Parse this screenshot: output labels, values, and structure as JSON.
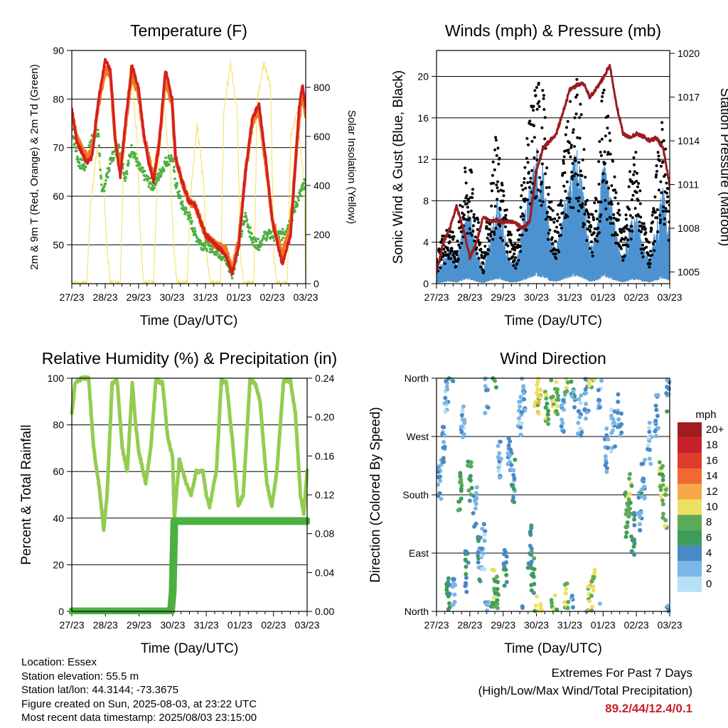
{
  "chart_data": [
    {
      "id": "temperature",
      "type": "line",
      "title": "Temperature (F)",
      "xlabel": "Time (Day/UTC)",
      "ylabel": "2m & 9m T (Red, Orange) & 2m Td (Green)",
      "ylabel_right": "Solar Insolation (Yellow)",
      "x_ticks": [
        "27/23",
        "28/23",
        "29/23",
        "30/23",
        "31/23",
        "01/23",
        "02/23",
        "03/23"
      ],
      "xlim": [
        0,
        7
      ],
      "ylim": [
        42,
        90
      ],
      "y_ticks": [
        50,
        60,
        70,
        80,
        90
      ],
      "ylim_right": [
        0,
        950
      ],
      "y_ticks_right": [
        0,
        200,
        400,
        600,
        800
      ],
      "grid": "horizontal",
      "colors": {
        "t2m": "#d42020",
        "t9m": "#f07a20",
        "td2m": "#4cb040",
        "solar": "#f5e05a"
      },
      "series": [
        {
          "key": "t2m",
          "x": [
            0,
            0.15,
            0.3,
            0.45,
            0.6,
            0.8,
            1.0,
            1.15,
            1.3,
            1.45,
            1.6,
            1.8,
            2.0,
            2.15,
            2.3,
            2.45,
            2.6,
            2.8,
            3.0,
            3.1,
            3.3,
            3.5,
            3.7,
            3.9,
            4.0,
            4.3,
            4.6,
            4.8,
            5.0,
            5.2,
            5.4,
            5.6,
            5.8,
            6.0,
            6.3,
            6.55,
            6.8,
            6.9,
            7.0
          ],
          "y": [
            78,
            71,
            69,
            67,
            68,
            80,
            88,
            86,
            72,
            64,
            75,
            87,
            82,
            73,
            67,
            63,
            70,
            86,
            80,
            68,
            63,
            59,
            58,
            54,
            52,
            50,
            48,
            44,
            50,
            65,
            76,
            79,
            68,
            55,
            46,
            52,
            78,
            83,
            78
          ]
        },
        {
          "key": "t9m",
          "x": [
            0,
            0.15,
            0.3,
            0.45,
            0.6,
            0.8,
            1.0,
            1.15,
            1.3,
            1.45,
            1.6,
            1.8,
            2.0,
            2.15,
            2.3,
            2.45,
            2.6,
            2.8,
            3.0,
            3.1,
            3.3,
            3.5,
            3.7,
            3.9,
            4.0,
            4.3,
            4.6,
            4.8,
            5.0,
            5.2,
            5.4,
            5.6,
            5.8,
            6.0,
            6.3,
            6.55,
            6.8,
            6.9,
            7.0
          ],
          "y": [
            77,
            72,
            70,
            68,
            69,
            79,
            86,
            85,
            72,
            65,
            74,
            85,
            81,
            73,
            68,
            64,
            70,
            84,
            79,
            68,
            63,
            59,
            58,
            54,
            52,
            50,
            49,
            45,
            51,
            65,
            75,
            78,
            67,
            55,
            48,
            54,
            76,
            81,
            77
          ]
        },
        {
          "key": "td2m",
          "x": [
            0,
            0.2,
            0.4,
            0.6,
            0.8,
            0.9,
            1.0,
            1.2,
            1.4,
            1.6,
            1.8,
            2.0,
            2.2,
            2.4,
            2.6,
            2.8,
            3.0,
            3.1,
            3.3,
            3.5,
            3.7,
            3.9,
            4.0,
            4.3,
            4.6,
            4.8,
            5.0,
            5.2,
            5.4,
            5.6,
            5.8,
            6.0,
            6.3,
            6.55,
            6.8,
            7.0
          ],
          "y": [
            74,
            67,
            66,
            72,
            73,
            60,
            63,
            68,
            70,
            64,
            70,
            66,
            64,
            62,
            64,
            67,
            68,
            63,
            58,
            56,
            52,
            50,
            50,
            49,
            47,
            44,
            50,
            56,
            51,
            50,
            52,
            52,
            52,
            55,
            60,
            63
          ]
        },
        {
          "key": "solar",
          "x": [
            0,
            0.45,
            0.55,
            0.75,
            0.95,
            1.05,
            1.15,
            1.45,
            1.55,
            1.75,
            1.95,
            2.05,
            2.15,
            2.45,
            2.55,
            2.75,
            2.95,
            3.05,
            3.15,
            3.45,
            3.55,
            3.75,
            3.95,
            4.05,
            4.15,
            4.45,
            4.55,
            4.75,
            4.95,
            5.05,
            5.15,
            5.45,
            5.55,
            5.75,
            5.95,
            6.05,
            6.15,
            6.45,
            6.55,
            6.75,
            6.95,
            7.0
          ],
          "y": [
            0,
            0,
            300,
            550,
            400,
            150,
            0,
            0,
            500,
            900,
            600,
            200,
            0,
            0,
            400,
            750,
            450,
            150,
            0,
            0,
            350,
            650,
            400,
            100,
            0,
            0,
            700,
            900,
            700,
            100,
            0,
            0,
            750,
            900,
            800,
            100,
            0,
            0,
            600,
            700,
            400,
            0
          ]
        }
      ]
    },
    {
      "id": "winds",
      "type": "scatter",
      "title": "Winds (mph) & Pressure (mb)",
      "xlabel": "Time (Day/UTC)",
      "ylabel": "Sonic Wind & Gust (Blue, Black)",
      "ylabel_right": "Station Pressure (Maroon)",
      "x_ticks": [
        "27/23",
        "28/23",
        "29/23",
        "30/23",
        "31/23",
        "01/23",
        "02/23",
        "03/23"
      ],
      "xlim": [
        0,
        7
      ],
      "ylim": [
        0,
        22.5
      ],
      "y_ticks": [
        0,
        4,
        8,
        12,
        16,
        20
      ],
      "ylim_right": [
        1004.2,
        1020.2
      ],
      "y_ticks_right": [
        1005,
        1008,
        1011,
        1014,
        1017,
        1020
      ],
      "grid": "horizontal",
      "colors": {
        "wind": "#4e93d0",
        "gust": "#000000",
        "pressure": "#9b1c20"
      },
      "series": [
        {
          "key": "wind",
          "x": [
            0,
            0.2,
            0.4,
            0.6,
            0.8,
            1.0,
            1.2,
            1.4,
            1.6,
            1.8,
            2.0,
            2.2,
            2.4,
            2.6,
            2.8,
            3.0,
            3.2,
            3.4,
            3.6,
            3.8,
            4.0,
            4.2,
            4.4,
            4.6,
            4.8,
            5.0,
            5.2,
            5.4,
            5.6,
            5.8,
            6.0,
            6.2,
            6.4,
            6.6,
            6.8,
            7.0
          ],
          "y": [
            1,
            2,
            3,
            2,
            5,
            6,
            3,
            1,
            4,
            7,
            5,
            2,
            2,
            5,
            8,
            11,
            10,
            4,
            3,
            6,
            9,
            11,
            8,
            3,
            4,
            10,
            8,
            4,
            2,
            5,
            6,
            3,
            2,
            5,
            8,
            4
          ]
        },
        {
          "key": "gust",
          "x": [
            0,
            0.2,
            0.4,
            0.6,
            0.8,
            1.0,
            1.2,
            1.4,
            1.6,
            1.8,
            2.0,
            2.2,
            2.4,
            2.6,
            2.8,
            3.0,
            3.2,
            3.4,
            3.6,
            3.8,
            4.0,
            4.2,
            4.4,
            4.6,
            4.8,
            5.0,
            5.2,
            5.4,
            5.6,
            5.8,
            6.0,
            6.2,
            6.4,
            6.6,
            6.8,
            7.0
          ],
          "y": [
            2,
            4,
            5,
            3,
            9,
            10,
            6,
            2,
            7,
            12,
            8,
            4,
            3,
            9,
            13,
            17,
            16,
            7,
            5,
            10,
            14,
            17,
            12,
            5,
            7,
            16,
            12,
            7,
            4,
            9,
            11,
            5,
            3,
            9,
            14,
            6
          ]
        },
        {
          "key": "pressure",
          "x": [
            0,
            0.2,
            0.4,
            0.6,
            0.8,
            1.0,
            1.2,
            1.4,
            1.6,
            1.8,
            2.0,
            2.2,
            2.4,
            2.6,
            2.8,
            3.0,
            3.2,
            3.4,
            3.6,
            3.8,
            4.0,
            4.2,
            4.4,
            4.6,
            4.8,
            5.0,
            5.2,
            5.4,
            5.6,
            5.8,
            6.0,
            6.2,
            6.4,
            6.6,
            6.8,
            7.0
          ],
          "y": [
            1005,
            1007,
            1008,
            1009.5,
            1008,
            1006,
            1007,
            1008.8,
            1008.5,
            1008.6,
            1008.4,
            1008.5,
            1008.3,
            1008,
            1008.5,
            1012,
            1013.5,
            1014,
            1014.5,
            1016,
            1017.5,
            1017.8,
            1018,
            1017,
            1017.6,
            1018.3,
            1019.2,
            1016.5,
            1014.5,
            1014.2,
            1014.5,
            1014.3,
            1014,
            1014.2,
            1013.5,
            1011
          ]
        }
      ]
    },
    {
      "id": "humidity",
      "type": "line",
      "title": "Relative Humidity (%) & Precipitation (in)",
      "xlabel": "Time (Day/UTC)",
      "ylabel": "Percent & Total Rainfall",
      "x_ticks": [
        "27/23",
        "28/23",
        "29/23",
        "30/23",
        "31/23",
        "01/23",
        "02/23",
        "03/23"
      ],
      "xlim": [
        0,
        7
      ],
      "ylim": [
        0,
        100
      ],
      "y_ticks": [
        0,
        20,
        40,
        60,
        80,
        100
      ],
      "ylim_right": [
        0,
        0.24
      ],
      "y_ticks_right": [
        "0.00",
        "0.04",
        "0.08",
        "0.12",
        "0.16",
        "0.20",
        "0.24"
      ],
      "grid": "horizontal",
      "colors": {
        "rh": "#94cc50",
        "precip": "#4cb040"
      },
      "series": [
        {
          "key": "rh",
          "x": [
            0,
            0.1,
            0.3,
            0.5,
            0.65,
            0.8,
            0.95,
            1.05,
            1.2,
            1.35,
            1.5,
            1.65,
            1.8,
            1.9,
            2.0,
            2.2,
            2.35,
            2.5,
            2.7,
            2.85,
            3.0,
            3.05,
            3.2,
            3.4,
            3.55,
            3.7,
            3.9,
            4.0,
            4.1,
            4.3,
            4.45,
            4.6,
            4.8,
            4.95,
            5.1,
            5.3,
            5.45,
            5.6,
            5.8,
            5.95,
            6.1,
            6.3,
            6.5,
            6.65,
            6.8,
            6.9,
            7.0
          ],
          "y": [
            85,
            98,
            100,
            100,
            70,
            55,
            35,
            50,
            98,
            99,
            70,
            60,
            98,
            80,
            68,
            55,
            70,
            99,
            98,
            75,
            66,
            40,
            65,
            55,
            50,
            60,
            60,
            50,
            45,
            60,
            99,
            98,
            70,
            45,
            50,
            99,
            98,
            90,
            55,
            45,
            60,
            99,
            99,
            85,
            50,
            42,
            60
          ]
        },
        {
          "key": "precip",
          "x": [
            0,
            2.95,
            3.0,
            3.05,
            7.0
          ],
          "y": [
            0,
            0,
            0.02,
            0.093,
            0.093
          ]
        }
      ]
    },
    {
      "id": "wind-direction",
      "type": "scatter",
      "title": "Wind Direction",
      "xlabel": "Time (Day/UTC)",
      "ylabel": "Direction (Colored By Speed)",
      "x_ticks": [
        "27/23",
        "28/23",
        "29/23",
        "30/23",
        "31/23",
        "01/23",
        "02/23",
        "03/23"
      ],
      "xlim": [
        0,
        7
      ],
      "ylim": [
        0,
        360
      ],
      "y_ticks": [
        0,
        90,
        180,
        270,
        360
      ],
      "y_tick_labels": [
        "North",
        "East",
        "South",
        "West",
        "North"
      ],
      "grid": "horizontal",
      "legend": {
        "title": "mph",
        "placement": "right",
        "labels": [
          "20+",
          "18",
          "16",
          "14",
          "12",
          "10",
          "8",
          "6",
          "4",
          "2",
          "0"
        ],
        "colors": [
          "#a01c20",
          "#c8202a",
          "#e03c2c",
          "#f06a30",
          "#f8a848",
          "#ece060",
          "#5aaa5a",
          "#3e9c5a",
          "#4a88c6",
          "#7ab6e6",
          "#b8e0f4"
        ]
      },
      "series": [
        {
          "key": "direction",
          "x": [
            0.1,
            0.2,
            0.3,
            0.35,
            0.5,
            0.7,
            0.8,
            0.9,
            1.0,
            1.15,
            1.3,
            1.4,
            1.5,
            1.7,
            1.8,
            1.9,
            2.05,
            2.2,
            2.3,
            2.5,
            2.6,
            2.8,
            2.9,
            3.0,
            3.1,
            3.3,
            3.5,
            3.6,
            3.8,
            3.9,
            4.1,
            4.3,
            4.5,
            4.6,
            4.7,
            4.9,
            5.1,
            5.3,
            5.5,
            5.7,
            5.8,
            5.9,
            6.1,
            6.2,
            6.4,
            6.6,
            6.75,
            6.85,
            6.95
          ],
          "y": [
            200,
            250,
            330,
            30,
            20,
            180,
            300,
            60,
            200,
            160,
            80,
            100,
            340,
            30,
            20,
            240,
            60,
            250,
            200,
            300,
            340,
            100,
            60,
            350,
            340,
            320,
            350,
            330,
            300,
            10,
            350,
            300,
            330,
            20,
            30,
            340,
            250,
            280,
            300,
            150,
            180,
            120,
            160,
            200,
            260,
            300,
            200,
            160,
            340
          ],
          "speed": [
            3,
            4,
            2,
            5,
            3,
            7,
            2,
            4,
            6,
            3,
            4,
            2,
            3,
            8,
            7,
            2,
            5,
            3,
            4,
            2,
            3,
            5,
            6,
            9,
            10,
            8,
            9,
            8,
            3,
            9,
            4,
            2,
            3,
            10,
            9,
            2,
            3,
            2,
            3,
            7,
            8,
            5,
            4,
            3,
            2,
            3,
            8,
            9,
            4
          ]
        }
      ]
    }
  ],
  "info": {
    "location": "Location: Essex",
    "elevation": "Station elevation: 55.5 m",
    "latlon": "Station lat/lon: 44.3144; -73.3675",
    "created": "Figure created on Sun, 2025-08-03, at 23:22 UTC",
    "recent": "Most recent data timestamp: 2025/08/03 23:15:00"
  },
  "extremes": {
    "heading": "Extremes For Past 7 Days",
    "subheading": "(High/Low/Max Wind/Total Precipitation)",
    "values": "89.2/44/12.4/0.1"
  }
}
